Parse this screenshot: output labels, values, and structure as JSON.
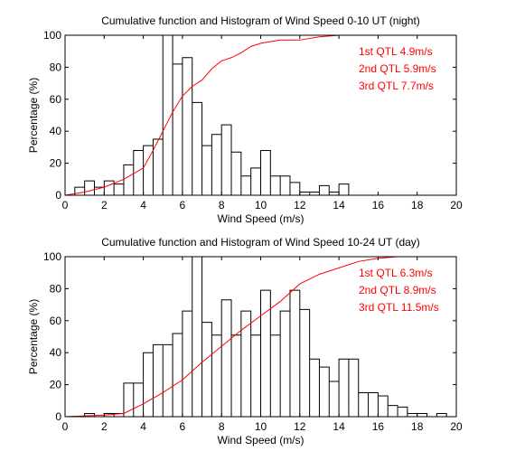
{
  "chart_data": [
    {
      "type": "line",
      "title": "Cumulative function and Histogram of Wind Speed 0-10 UT (night)",
      "xlabel": "Wind Speed (m/s)",
      "ylabel": "Percentage (%)",
      "xlim": [
        0,
        20
      ],
      "ylim": [
        0,
        100
      ],
      "xticks": [
        "0",
        "2",
        "4",
        "6",
        "8",
        "10",
        "12",
        "14",
        "16",
        "18",
        "20"
      ],
      "yticks": [
        "0",
        "20",
        "40",
        "60",
        "80",
        "100"
      ],
      "grid": false,
      "series_histogram": {
        "name": "",
        "color": "#000000",
        "bin_width": 0.5,
        "x": [
          0.5,
          1.0,
          1.5,
          2.0,
          2.5,
          3.0,
          3.5,
          4.0,
          4.5,
          5.0,
          5.5,
          6.0,
          6.5,
          7.0,
          7.5,
          8.0,
          8.5,
          9.0,
          9.5,
          10.0,
          10.5,
          11.0,
          11.5,
          12.0,
          12.5,
          13.0,
          13.5,
          14.0
        ],
        "values": [
          5,
          9,
          5,
          9,
          7,
          19,
          28,
          31,
          35,
          100,
          82,
          86,
          58,
          31,
          38,
          44,
          27,
          12,
          17,
          28,
          12,
          12,
          8,
          2,
          2,
          6,
          2,
          7
        ]
      },
      "series_cumulative": {
        "name": "",
        "color": "#ff0000",
        "x": [
          0,
          1,
          2,
          3,
          4,
          4.5,
          5,
          5.5,
          6,
          6.5,
          7,
          7.5,
          8,
          8.5,
          9,
          9.5,
          10,
          11,
          12,
          13,
          14,
          20
        ],
        "values": [
          0,
          2,
          5,
          10,
          17,
          28,
          40,
          52,
          62,
          68,
          72,
          79,
          84,
          86,
          89,
          93,
          95,
          97,
          97,
          99,
          100,
          100
        ]
      },
      "annotations": [
        {
          "text": "1st QTL 4.9m/s"
        },
        {
          "text": "2nd QTL 5.9m/s"
        },
        {
          "text": "3rd QTL 7.7m/s"
        }
      ]
    },
    {
      "type": "line",
      "title": "Cumulative function and Histogram of Wind Speed 10-24 UT (day)",
      "xlabel": "Wind Speed (m/s)",
      "ylabel": "Percentage (%)",
      "xlim": [
        0,
        20
      ],
      "ylim": [
        0,
        100
      ],
      "xticks": [
        "0",
        "2",
        "4",
        "6",
        "8",
        "10",
        "12",
        "14",
        "16",
        "18",
        "20"
      ],
      "yticks": [
        "0",
        "20",
        "40",
        "60",
        "80",
        "100"
      ],
      "grid": false,
      "series_histogram": {
        "name": "",
        "color": "#000000",
        "bin_width": 0.5,
        "x": [
          1.0,
          2.0,
          2.5,
          3.0,
          3.5,
          4.0,
          4.5,
          5.0,
          5.5,
          6.0,
          6.5,
          7.0,
          7.5,
          8.0,
          8.5,
          9.0,
          9.5,
          10.0,
          10.5,
          11.0,
          11.5,
          12.0,
          12.5,
          13.0,
          13.5,
          14.0,
          14.5,
          15.0,
          15.5,
          16.0,
          16.5,
          17.0,
          17.5,
          18.0,
          19.0
        ],
        "values": [
          2,
          2,
          2,
          21,
          21,
          40,
          45,
          45,
          52,
          66,
          100,
          59,
          51,
          73,
          51,
          66,
          51,
          79,
          51,
          66,
          79,
          67,
          36,
          31,
          22,
          36,
          36,
          15,
          15,
          13,
          7,
          6,
          2,
          2,
          2
        ]
      },
      "series_cumulative": {
        "name": "",
        "color": "#ff0000",
        "x": [
          0,
          2,
          3,
          4,
          5,
          6,
          7,
          8,
          9,
          10,
          11,
          12,
          13,
          14,
          15,
          16,
          17,
          18,
          20
        ],
        "values": [
          0,
          1,
          2,
          8,
          15,
          23,
          34,
          44,
          54,
          63,
          72,
          83,
          89,
          93,
          97,
          99,
          100,
          100,
          100
        ]
      },
      "annotations": [
        {
          "text": "1st QTL 6.3m/s"
        },
        {
          "text": "2nd QTL 8.9m/s"
        },
        {
          "text": "3rd QTL 11.5m/s"
        }
      ]
    }
  ]
}
